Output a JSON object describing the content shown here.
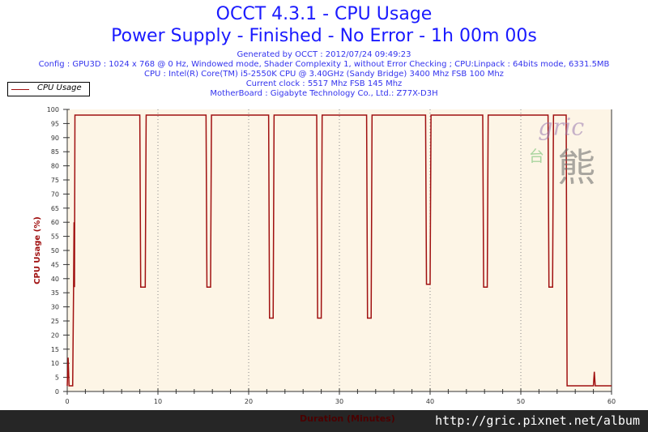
{
  "header": {
    "title": "OCCT 4.3.1 - CPU Usage",
    "subtitle": "Power Supply - Finished - No Error - 1h 00m 00s",
    "lines": [
      "Generated by OCCT : 2012/07/24 09:49:23",
      "Config : GPU3D : 1024 x 768 @ 0 Hz, Windowed mode, Shader Complexity 1, without Error Checking ; CPU:Linpack : 64bits mode, 6331.5MB",
      "CPU : Intel(R) Core(TM) i5-2550K CPU @ 3.40GHz (Sandy Bridge) 3400 Mhz FSB 100 Mhz",
      "Current clock : 5517 Mhz FSB 145 Mhz",
      "MotherBoard : Gigabyte Technology Co., Ltd.: Z77X-D3H"
    ]
  },
  "footer": {
    "url": "http://gric.pixnet.net/album"
  },
  "watermark": {
    "text": "gric 台灣 熊"
  },
  "colors": {
    "series": "#a01010",
    "plot_bg": "#fdf5e6",
    "title": "#1a1aff"
  },
  "chart_data": {
    "type": "line",
    "xlabel": "Duration (Minutes)",
    "ylabel": "CPU Usage (%)",
    "xlim": [
      0,
      60
    ],
    "ylim": [
      0,
      100
    ],
    "xticks": [
      0,
      10,
      20,
      30,
      40,
      50,
      60
    ],
    "yticks": [
      0,
      5,
      10,
      15,
      20,
      25,
      30,
      35,
      40,
      45,
      50,
      55,
      60,
      65,
      70,
      75,
      80,
      85,
      90,
      95,
      100
    ],
    "grid": "vertical dotted",
    "legend": "top-left",
    "series": [
      {
        "name": "CPU Usage",
        "points": [
          [
            0,
            2
          ],
          [
            0.1,
            12
          ],
          [
            0.2,
            2
          ],
          [
            0.6,
            2
          ],
          [
            0.7,
            37
          ],
          [
            0.75,
            60
          ],
          [
            0.8,
            37
          ],
          [
            0.85,
            98
          ],
          [
            8.0,
            98
          ],
          [
            8.1,
            37
          ],
          [
            8.6,
            37
          ],
          [
            8.7,
            98
          ],
          [
            15.3,
            98
          ],
          [
            15.4,
            37
          ],
          [
            15.8,
            37
          ],
          [
            15.9,
            98
          ],
          [
            22.2,
            98
          ],
          [
            22.3,
            26
          ],
          [
            22.7,
            26
          ],
          [
            22.8,
            98
          ],
          [
            27.5,
            98
          ],
          [
            27.6,
            26
          ],
          [
            28.0,
            26
          ],
          [
            28.1,
            98
          ],
          [
            33.0,
            98
          ],
          [
            33.1,
            26
          ],
          [
            33.5,
            26
          ],
          [
            33.6,
            98
          ],
          [
            39.5,
            98
          ],
          [
            39.6,
            38
          ],
          [
            40.0,
            38
          ],
          [
            40.1,
            98
          ],
          [
            45.8,
            98
          ],
          [
            45.9,
            37
          ],
          [
            46.3,
            37
          ],
          [
            46.4,
            98
          ],
          [
            53.0,
            98
          ],
          [
            53.1,
            37
          ],
          [
            53.5,
            37
          ],
          [
            53.6,
            98
          ],
          [
            55.0,
            98
          ],
          [
            55.1,
            2
          ],
          [
            58,
            2
          ],
          [
            58.1,
            7
          ],
          [
            58.2,
            2
          ],
          [
            60,
            2
          ]
        ]
      }
    ]
  }
}
